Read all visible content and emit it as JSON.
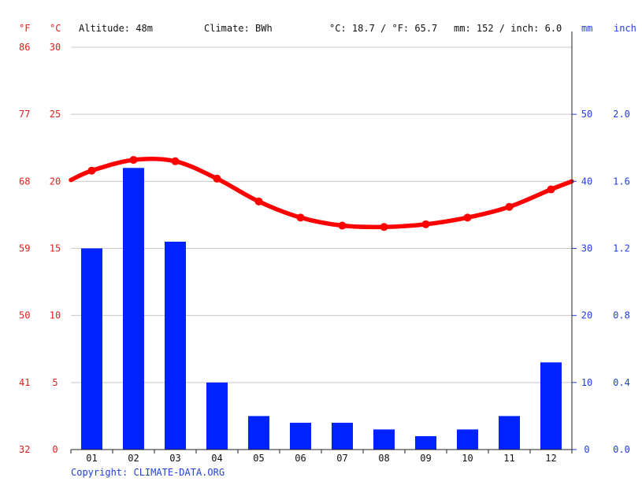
{
  "header": {
    "unit_f": "°F",
    "unit_c": "°C",
    "altitude": "Altitude: 48m",
    "climate": "Climate: BWh",
    "averages_temp": "°C: 18.7 / °F: 65.7",
    "averages_precip": "mm: 152 / inch: 6.0",
    "unit_mm": "mm",
    "unit_inch": "inch"
  },
  "footer": {
    "copyright": "Copyright: CLIMATE-DATA.ORG"
  },
  "colors": {
    "temperature": "#ff0000",
    "precipitation": "#0022ff",
    "left_axis": "#e02020",
    "right_axis": "#1f3fe0",
    "grid": "#c8c8c8"
  },
  "chart_data": {
    "type": "bar",
    "categories": [
      "01",
      "02",
      "03",
      "04",
      "05",
      "06",
      "07",
      "08",
      "09",
      "10",
      "11",
      "12"
    ],
    "series": [
      {
        "kind": "bar",
        "axis": "right",
        "values": [
          30,
          42,
          31,
          10,
          5,
          4,
          4,
          3,
          2,
          3,
          5,
          13
        ]
      },
      {
        "kind": "line",
        "axis": "left",
        "values": [
          20.8,
          21.6,
          21.5,
          20.2,
          18.5,
          17.3,
          16.7,
          16.6,
          16.8,
          17.3,
          18.1,
          19.4
        ]
      }
    ],
    "line_start": 20.1,
    "line_end": 20.0,
    "celsius_axis": {
      "ticks": [
        "0",
        "5",
        "10",
        "15",
        "20",
        "25",
        "30"
      ],
      "ylim": [
        0,
        30
      ]
    },
    "fahrenheit_axis": {
      "ticks": [
        "32",
        "41",
        "50",
        "59",
        "68",
        "77",
        "86"
      ]
    },
    "mm_axis": {
      "ticks": [
        "0",
        "10",
        "20",
        "30",
        "40",
        "50"
      ],
      "ylim": [
        0,
        60
      ]
    },
    "inch_axis": {
      "ticks": [
        "0.0",
        "0.4",
        "0.8",
        "1.2",
        "1.6",
        "2.0"
      ]
    },
    "grid": true
  }
}
